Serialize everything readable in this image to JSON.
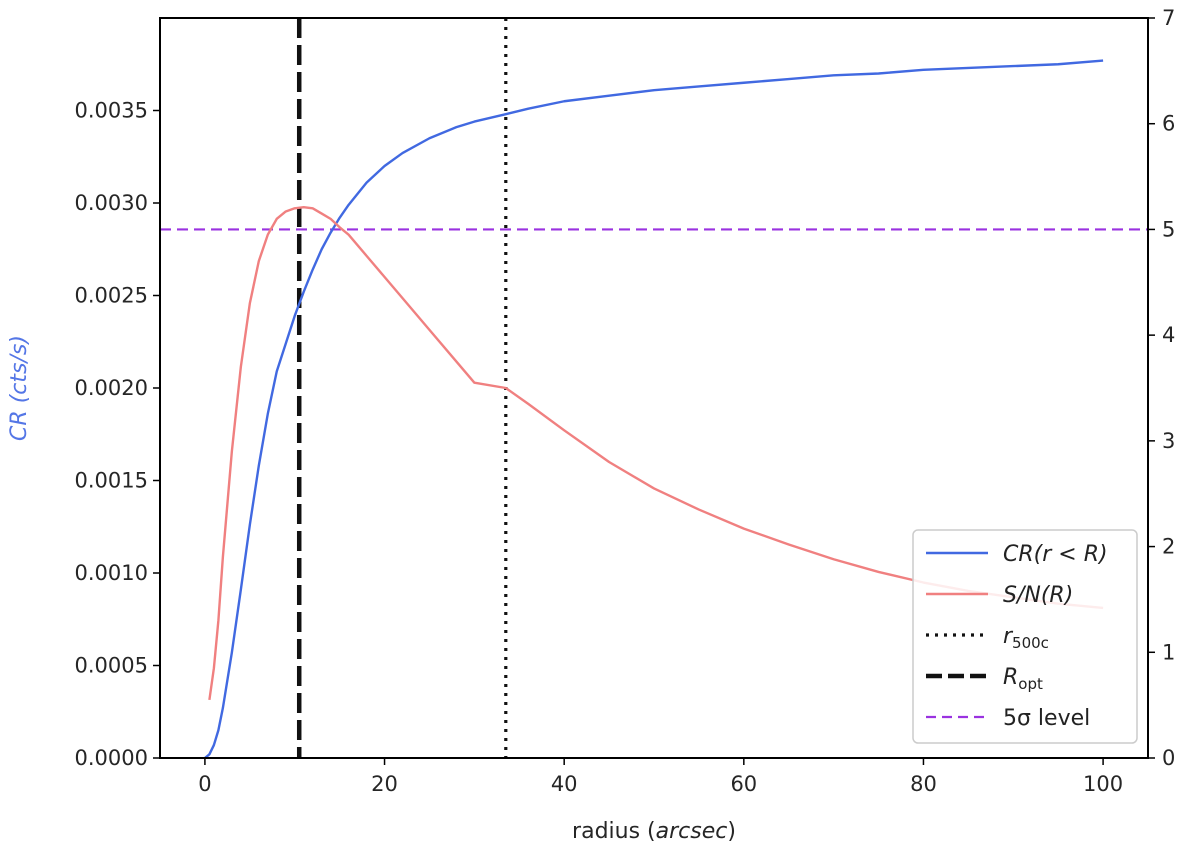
{
  "chart_data": {
    "type": "line",
    "title": "",
    "x_axis": {
      "label_prefix": "radius (",
      "label_italic": "arcsec",
      "label_suffix": ")",
      "range": [
        -5,
        105
      ],
      "ticks": [
        0,
        20,
        40,
        60,
        80,
        100
      ],
      "tick_labels": [
        "0",
        "20",
        "40",
        "60",
        "80",
        "100"
      ]
    },
    "y_left": {
      "label": "CR (cts/s)",
      "color": "#5476e6",
      "range": [
        0,
        0.004
      ],
      "ticks": [
        0,
        0.0005,
        0.001,
        0.0015,
        0.002,
        0.0025,
        0.003,
        0.0035
      ],
      "tick_labels": [
        "0.0000",
        "0.0005",
        "0.0010",
        "0.0015",
        "0.0020",
        "0.0025",
        "0.0030",
        "0.0035"
      ]
    },
    "y_right": {
      "range": [
        0,
        7
      ],
      "ticks": [
        0,
        1,
        2,
        3,
        4,
        5,
        6,
        7
      ],
      "tick_labels": [
        "0",
        "1",
        "2",
        "3",
        "4",
        "5",
        "6",
        "7"
      ]
    },
    "series": [
      {
        "id": "cr",
        "axis": "left",
        "color": "#4169e1",
        "x": [
          0,
          0.5,
          1,
          1.5,
          2,
          3,
          4,
          5,
          6,
          7,
          8,
          9,
          10,
          11,
          12,
          13,
          14,
          15,
          16,
          18,
          20,
          22,
          25,
          28,
          30,
          33.5,
          36,
          40,
          45,
          50,
          55,
          60,
          65,
          70,
          75,
          80,
          85,
          90,
          95,
          100
        ],
        "y": [
          0.0,
          2e-05,
          7e-05,
          0.00015,
          0.00027,
          0.00057,
          0.00091,
          0.00126,
          0.00158,
          0.00186,
          0.00209,
          0.00224,
          0.00239,
          0.00252,
          0.00264,
          0.00275,
          0.00284,
          0.00292,
          0.00299,
          0.00311,
          0.0032,
          0.00327,
          0.00335,
          0.00341,
          0.00344,
          0.00348,
          0.00351,
          0.00355,
          0.00358,
          0.00361,
          0.00363,
          0.00365,
          0.00367,
          0.00369,
          0.0037,
          0.00372,
          0.00373,
          0.00374,
          0.00375,
          0.00377
        ]
      },
      {
        "id": "sn",
        "axis": "right",
        "color": "#f08080",
        "x": [
          0.5,
          1,
          1.5,
          2,
          3,
          4,
          5,
          6,
          7,
          8,
          9,
          10,
          11,
          12,
          13,
          14,
          15,
          16,
          18,
          20,
          22,
          25,
          28,
          30,
          33.5,
          36,
          40,
          45,
          50,
          55,
          60,
          65,
          70,
          75,
          80,
          85,
          90,
          95,
          100
        ],
        "y": [
          0.55,
          0.85,
          1.3,
          1.9,
          2.9,
          3.7,
          4.3,
          4.7,
          4.95,
          5.1,
          5.17,
          5.2,
          5.21,
          5.2,
          5.15,
          5.1,
          5.02,
          4.95,
          4.75,
          4.55,
          4.35,
          4.05,
          3.75,
          3.55,
          3.5,
          3.35,
          3.1,
          2.8,
          2.55,
          2.35,
          2.17,
          2.02,
          1.88,
          1.76,
          1.66,
          1.58,
          1.52,
          1.46,
          1.42
        ]
      }
    ],
    "reference_lines": {
      "r500c_x": 33.5,
      "ropt_x": 10.5,
      "five_sigma_y": 5.0
    },
    "legend": {
      "placement": "lower-right",
      "entries": [
        {
          "id": "cr",
          "label_main": "CR(r < R)",
          "style": "solid",
          "color": "#4169e1"
        },
        {
          "id": "sn",
          "label_main": "S/N(R)",
          "style": "solid",
          "color": "#f08080"
        },
        {
          "id": "r500c",
          "label_main": "r",
          "label_sub": "500c",
          "style": "dotted",
          "color": "#111111"
        },
        {
          "id": "ropt",
          "label_main": "R",
          "label_sub": "opt",
          "style": "dashed",
          "color": "#111111"
        },
        {
          "id": "sigma",
          "label_main": "5σ level",
          "style": "dashed",
          "color": "#9a32e0"
        }
      ]
    }
  }
}
